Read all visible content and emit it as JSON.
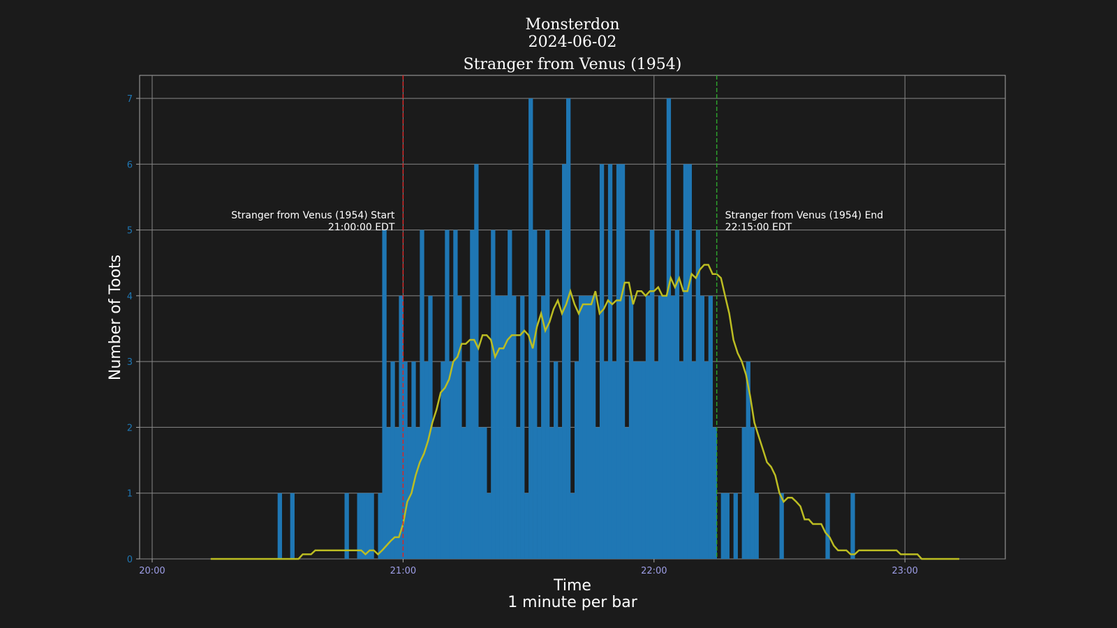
{
  "chart_data": {
    "type": "bar",
    "title_lines": [
      "Monsterdon",
      "2024-06-02",
      "Stranger from Venus (1954)"
    ],
    "xlabel": "Time",
    "xlabel_sub": "1 minute per bar",
    "ylabel": "Number of Toots",
    "xlim_minutes": [
      1197,
      1404
    ],
    "ylim": [
      0,
      7.35
    ],
    "yticks": [
      0,
      1,
      2,
      3,
      4,
      5,
      6,
      7
    ],
    "xticks": [
      {
        "minutes": 1200,
        "label": "20:00"
      },
      {
        "minutes": 1260,
        "label": "21:00"
      },
      {
        "minutes": 1320,
        "label": "22:00"
      },
      {
        "minutes": 1380,
        "label": "23:00"
      }
    ],
    "grid": true,
    "colors": {
      "background": "#1b1b1b",
      "bar": "#1f77b4",
      "rolling_line": "#bcbd22",
      "start_line": "#d62728",
      "end_line": "#2ca02c",
      "grid": "#888888",
      "frame": "#aaaaaa"
    },
    "bars": {
      "start_minute": 1230,
      "values": [
        1,
        0,
        0,
        1,
        0,
        0,
        0,
        0,
        0,
        0,
        0,
        0,
        0,
        0,
        0,
        0,
        1,
        0,
        0,
        1,
        1,
        1,
        1,
        0,
        1,
        5,
        2,
        3,
        2,
        4,
        3,
        2,
        3,
        2,
        5,
        3,
        4,
        2,
        2,
        3,
        5,
        3,
        5,
        4,
        2,
        3,
        5,
        6,
        2,
        2,
        1,
        5,
        4,
        4,
        4,
        5,
        4,
        2,
        4,
        1,
        7,
        5,
        2,
        4,
        5,
        2,
        3,
        2,
        6,
        7,
        1,
        3,
        4,
        4,
        4,
        4,
        2,
        6,
        3,
        6,
        3,
        6,
        6,
        2,
        4,
        3,
        3,
        3,
        4,
        5,
        3,
        4,
        4,
        7,
        4,
        5,
        3,
        6,
        6,
        3,
        5,
        4,
        3,
        4,
        2,
        0,
        1,
        1,
        0,
        1,
        0,
        2,
        3,
        2,
        1,
        0,
        0,
        0,
        0,
        0,
        1,
        0,
        0,
        0,
        0,
        0,
        0,
        0,
        0,
        0,
        0,
        1,
        0,
        0,
        0,
        0,
        0,
        1
      ]
    },
    "rolling": {
      "start_minute": 1214,
      "values": [
        0,
        0,
        0,
        0,
        0,
        0,
        0,
        0,
        0,
        0,
        0,
        0,
        0,
        0,
        0,
        0,
        0,
        0,
        0,
        0,
        0,
        0,
        0.07,
        0.07,
        0.07,
        0.13,
        0.13,
        0.13,
        0.13,
        0.13,
        0.13,
        0.13,
        0.13,
        0.13,
        0.13,
        0.13,
        0.13,
        0.07,
        0.13,
        0.13,
        0.07,
        0.13,
        0.2,
        0.27,
        0.33,
        0.33,
        0.53,
        0.87,
        1.0,
        1.27,
        1.47,
        1.6,
        1.8,
        2.07,
        2.27,
        2.53,
        2.6,
        2.73,
        3.0,
        3.07,
        3.27,
        3.27,
        3.33,
        3.33,
        3.2,
        3.4,
        3.4,
        3.33,
        3.07,
        3.2,
        3.2,
        3.33,
        3.4,
        3.4,
        3.4,
        3.47,
        3.4,
        3.2,
        3.53,
        3.73,
        3.47,
        3.6,
        3.8,
        3.93,
        3.73,
        3.87,
        4.07,
        3.87,
        3.73,
        3.87,
        3.87,
        3.87,
        4.07,
        3.73,
        3.8,
        3.93,
        3.87,
        3.93,
        3.93,
        4.2,
        4.2,
        3.87,
        4.07,
        4.07,
        4.0,
        4.07,
        4.07,
        4.13,
        4.0,
        4.0,
        4.27,
        4.13,
        4.27,
        4.07,
        4.07,
        4.33,
        4.27,
        4.4,
        4.47,
        4.47,
        4.33,
        4.33,
        4.27,
        4.0,
        3.73,
        3.33,
        3.13,
        3.0,
        2.8,
        2.47,
        2.07,
        1.87,
        1.67,
        1.47,
        1.4,
        1.27,
        1.0,
        0.87,
        0.93,
        0.93,
        0.87,
        0.8,
        0.6,
        0.6,
        0.53,
        0.53,
        0.53,
        0.4,
        0.33,
        0.2,
        0.13,
        0.13,
        0.13,
        0.07,
        0.07,
        0.13,
        0.13,
        0.13,
        0.13,
        0.13,
        0.13,
        0.13,
        0.13,
        0.13,
        0.13,
        0.07,
        0.07,
        0.07,
        0.07,
        0.07,
        0,
        0,
        0,
        0,
        0,
        0,
        0,
        0,
        0,
        0
      ]
    },
    "annotations": {
      "start": {
        "minute": 1260,
        "line1": "Stranger from Venus (1954) Start",
        "line2": "21:00:00 EDT"
      },
      "end": {
        "minute": 1335,
        "line1": "Stranger from Venus (1954) End",
        "line2": "22:15:00 EDT"
      }
    }
  }
}
